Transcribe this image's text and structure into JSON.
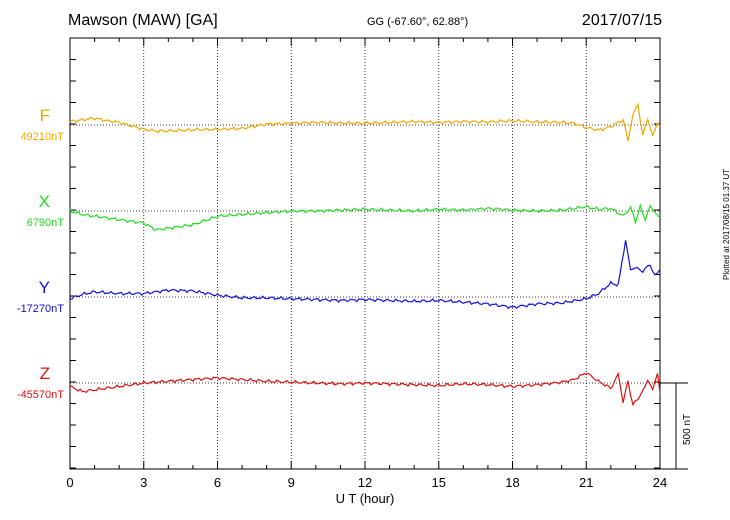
{
  "header": {
    "station": "Mawson (MAW)  [GA]",
    "coords": "GG (-67.60°,  62.88°)",
    "date": "2017/07/15"
  },
  "side_note": "Plotted at 2017/08/15 01:37 UT",
  "chart_data": {
    "type": "line",
    "xlabel": "U T (hour)",
    "xlim": [
      0,
      24
    ],
    "xticks": [
      "0",
      "3",
      "6",
      "9",
      "12",
      "15",
      "18",
      "21",
      "24"
    ],
    "grid": "vertical dotted every 3 hours",
    "scale_bar": {
      "value": 500,
      "label": "500 nT"
    },
    "series": [
      {
        "name": "F",
        "baseline": "49210nT",
        "color": "#f0a800",
        "x": [
          0,
          0.5,
          1,
          1.5,
          2,
          3,
          3.5,
          4,
          5,
          6,
          7,
          8,
          9,
          10,
          11,
          12,
          13,
          14,
          15,
          16,
          17,
          18,
          19,
          20,
          20.5,
          21,
          21.5,
          22,
          22.5,
          22.7,
          22.9,
          23.1,
          23.3,
          23.5,
          23.7,
          23.9,
          24
        ],
        "y": [
          20,
          30,
          40,
          25,
          15,
          -25,
          -35,
          -35,
          -28,
          -25,
          -20,
          5,
          10,
          15,
          12,
          10,
          15,
          20,
          15,
          20,
          18,
          25,
          18,
          15,
          10,
          -15,
          -30,
          -10,
          30,
          -90,
          60,
          120,
          -60,
          40,
          -70,
          20,
          -10
        ]
      },
      {
        "name": "X",
        "baseline": "6790nT",
        "color": "#22dd22",
        "x": [
          0,
          0.5,
          1,
          2,
          3,
          3.5,
          4,
          5,
          6,
          7,
          8,
          9,
          10,
          11,
          12,
          13,
          14,
          15,
          16,
          17,
          18,
          19,
          20,
          21,
          21.5,
          22,
          22.5,
          22.8,
          23,
          23.2,
          23.4,
          23.6,
          23.8,
          24
        ],
        "y": [
          0,
          -20,
          -30,
          -50,
          -70,
          -110,
          -100,
          -80,
          -30,
          -20,
          -10,
          0,
          0,
          5,
          10,
          5,
          0,
          10,
          5,
          15,
          5,
          0,
          5,
          25,
          10,
          15,
          -30,
          20,
          -60,
          25,
          -50,
          30,
          -10,
          -40
        ]
      },
      {
        "name": "Y",
        "baseline": "-17270nT",
        "color": "#1010dd",
        "x": [
          0,
          0.5,
          1,
          2,
          3,
          3.5,
          4,
          5,
          6,
          7,
          8,
          9,
          10,
          11,
          12,
          13,
          14,
          15,
          16,
          17,
          18,
          19,
          20,
          21,
          21.5,
          22,
          22.3,
          22.6,
          22.8,
          23,
          23.3,
          23.6,
          23.8,
          24
        ],
        "y": [
          -10,
          15,
          30,
          20,
          20,
          30,
          40,
          35,
          10,
          -5,
          -5,
          -10,
          -15,
          -20,
          -15,
          -20,
          -25,
          -20,
          -30,
          -40,
          -60,
          -40,
          -35,
          -10,
          20,
          80,
          70,
          330,
          160,
          170,
          150,
          190,
          120,
          160
        ]
      },
      {
        "name": "Z",
        "baseline": "-45570nT",
        "color": "#e01010",
        "x": [
          0,
          0.5,
          1,
          1.5,
          2,
          3,
          4,
          5,
          6,
          7,
          8,
          9,
          10,
          11,
          12,
          13,
          14,
          15,
          16,
          17,
          18,
          19,
          20,
          20.5,
          21,
          21.5,
          22,
          22.3,
          22.5,
          22.7,
          22.9,
          23.1,
          23.3,
          23.5,
          23.7,
          23.9,
          24
        ],
        "y": [
          -20,
          -50,
          -40,
          -30,
          -20,
          0,
          10,
          20,
          30,
          20,
          10,
          5,
          0,
          -5,
          0,
          -5,
          -10,
          -15,
          -5,
          -10,
          -20,
          -10,
          5,
          20,
          60,
          10,
          -30,
          50,
          -110,
          10,
          -130,
          -90,
          -50,
          20,
          -40,
          60,
          -60
        ]
      }
    ]
  }
}
